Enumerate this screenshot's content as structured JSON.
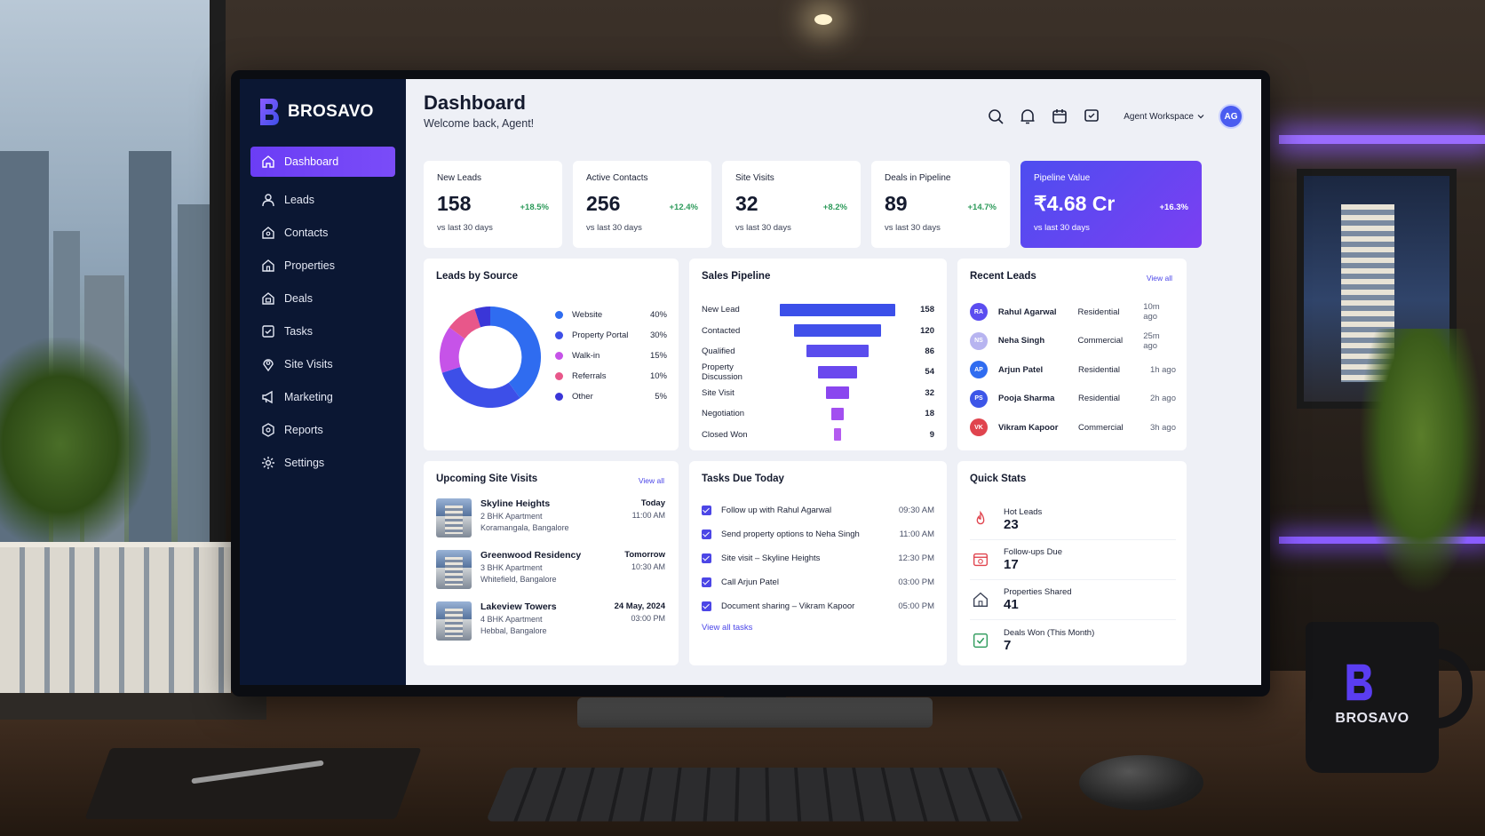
{
  "brand": {
    "name": "BROSAVO"
  },
  "mug": {
    "brand": "BROSAVO"
  },
  "sidebar": {
    "items": [
      {
        "label": "Dashboard",
        "icon": "home-icon",
        "active": true
      },
      {
        "label": "Leads",
        "icon": "user-icon"
      },
      {
        "label": "Contacts",
        "icon": "contacts-icon"
      },
      {
        "label": "Properties",
        "icon": "house-icon"
      },
      {
        "label": "Deals",
        "icon": "deals-icon"
      },
      {
        "label": "Tasks",
        "icon": "task-check-icon"
      },
      {
        "label": "Site Visits",
        "icon": "location-pin-icon"
      },
      {
        "label": "Marketing",
        "icon": "megaphone-icon"
      },
      {
        "label": "Reports",
        "icon": "report-icon"
      },
      {
        "label": "Settings",
        "icon": "gear-icon"
      }
    ]
  },
  "header": {
    "title": "Dashboard",
    "subtitle": "Welcome back, Agent!",
    "workspace": "Agent Workspace",
    "avatar": "AG",
    "icons": [
      "search-icon",
      "bell-icon",
      "calendar-icon",
      "chat-icon"
    ]
  },
  "kpis": [
    {
      "label": "New Leads",
      "value": "158",
      "delta": "+18.5%",
      "sub": "vs last 30 days"
    },
    {
      "label": "Active Contacts",
      "value": "256",
      "delta": "+12.4%",
      "sub": "vs last 30 days"
    },
    {
      "label": "Site Visits",
      "value": "32",
      "delta": "+8.2%",
      "sub": "vs last 30 days"
    },
    {
      "label": "Deals in Pipeline",
      "value": "89",
      "delta": "+14.7%",
      "sub": "vs last 30 days"
    },
    {
      "label": "Pipeline Value",
      "value": "₹4.68 Cr",
      "delta": "+16.3%",
      "sub": "vs last 30 days"
    }
  ],
  "leads_by_source": {
    "title": "Leads by Source",
    "items": [
      {
        "label": "Website",
        "pct": "40%",
        "value": 40,
        "color": "#2f6cf0"
      },
      {
        "label": "Property Portal",
        "pct": "30%",
        "value": 30,
        "color": "#3d4fe8"
      },
      {
        "label": "Walk-in",
        "pct": "15%",
        "value": 15,
        "color": "#c653e8"
      },
      {
        "label": "Referrals",
        "pct": "10%",
        "value": 10,
        "color": "#e8578a"
      },
      {
        "label": "Other",
        "pct": "5%",
        "value": 5,
        "color": "#3a36d8"
      }
    ]
  },
  "sales_pipeline": {
    "title": "Sales Pipeline",
    "stages": [
      {
        "label": "New Lead",
        "value": "158"
      },
      {
        "label": "Contacted",
        "value": "120"
      },
      {
        "label": "Qualified",
        "value": "86"
      },
      {
        "label": "Property Discussion",
        "value": "54"
      },
      {
        "label": "Site Visit",
        "value": "32"
      },
      {
        "label": "Negotiation",
        "value": "18"
      },
      {
        "label": "Closed Won",
        "value": "9"
      }
    ]
  },
  "recent_leads": {
    "title": "Recent Leads",
    "view_all": "View all",
    "items": [
      {
        "initials": "RA",
        "name": "Rahul Agarwal",
        "type": "Residential",
        "time": "10m ago",
        "color": "#5b4df0"
      },
      {
        "initials": "NS",
        "name": "Neha Singh",
        "type": "Commercial",
        "time": "25m ago",
        "color": "#b7b4f0"
      },
      {
        "initials": "AP",
        "name": "Arjun Patel",
        "type": "Residential",
        "time": "1h ago",
        "color": "#2f6cf0"
      },
      {
        "initials": "PS",
        "name": "Pooja Sharma",
        "type": "Residential",
        "time": "2h ago",
        "color": "#3d56e8"
      },
      {
        "initials": "VK",
        "name": "Vikram Kapoor",
        "type": "Commercial",
        "time": "3h ago",
        "color": "#e0444e"
      }
    ]
  },
  "site_visits": {
    "title": "Upcoming Site Visits",
    "view_all": "View all",
    "items": [
      {
        "name": "Skyline Heights",
        "type": "2 BHK Apartment",
        "location": "Koramangala, Bangalore",
        "day": "Today",
        "time": "11:00 AM"
      },
      {
        "name": "Greenwood Residency",
        "type": "3 BHK Apartment",
        "location": "Whitefield, Bangalore",
        "day": "Tomorrow",
        "time": "10:30 AM"
      },
      {
        "name": "Lakeview Towers",
        "type": "4 BHK Apartment",
        "location": "Hebbal, Bangalore",
        "day": "24 May, 2024",
        "time": "03:00 PM"
      }
    ]
  },
  "tasks": {
    "title": "Tasks Due Today",
    "link": "View all tasks",
    "items": [
      {
        "label": "Follow up with Rahul Agarwal",
        "time": "09:30 AM"
      },
      {
        "label": "Send property options to Neha Singh",
        "time": "11:00 AM"
      },
      {
        "label": "Site visit – Skyline Heights",
        "time": "12:30 PM"
      },
      {
        "label": "Call Arjun Patel",
        "time": "03:00 PM"
      },
      {
        "label": "Document sharing – Vikram Kapoor",
        "time": "05:00 PM"
      }
    ]
  },
  "quick_stats": {
    "title": "Quick Stats",
    "items": [
      {
        "label": "Hot Leads",
        "value": "23",
        "icon": "fire-icon"
      },
      {
        "label": "Follow-ups Due",
        "value": "17",
        "icon": "calendar-clock-icon"
      },
      {
        "label": "Properties Shared",
        "value": "41",
        "icon": "house-icon"
      },
      {
        "label": "Deals Won (This Month)",
        "value": "7",
        "icon": "check-square-icon"
      }
    ]
  }
}
